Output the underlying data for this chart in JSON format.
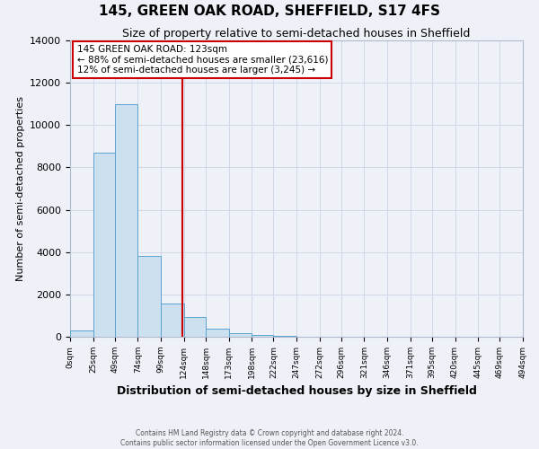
{
  "title": "145, GREEN OAK ROAD, SHEFFIELD, S17 4FS",
  "subtitle": "Size of property relative to semi-detached houses in Sheffield",
  "xlabel": "Distribution of semi-detached houses by size in Sheffield",
  "ylabel": "Number of semi-detached properties",
  "bin_labels": [
    "0sqm",
    "25sqm",
    "49sqm",
    "74sqm",
    "99sqm",
    "124sqm",
    "148sqm",
    "173sqm",
    "198sqm",
    "222sqm",
    "247sqm",
    "272sqm",
    "296sqm",
    "321sqm",
    "346sqm",
    "371sqm",
    "395sqm",
    "420sqm",
    "445sqm",
    "469sqm",
    "494sqm"
  ],
  "bin_edges": [
    0,
    25,
    49,
    74,
    99,
    124,
    148,
    173,
    198,
    222,
    247,
    272,
    296,
    321,
    346,
    371,
    395,
    420,
    445,
    469,
    494
  ],
  "bar_heights": [
    300,
    8700,
    11000,
    3800,
    1550,
    950,
    400,
    150,
    80,
    60,
    0,
    0,
    0,
    0,
    0,
    0,
    0,
    0,
    0,
    0
  ],
  "bar_color": "#cce0f0",
  "bar_edge_color": "#5ba3d0",
  "property_line_x": 123,
  "annotation_title": "145 GREEN OAK ROAD: 123sqm",
  "annotation_line1": "← 88% of semi-detached houses are smaller (23,616)",
  "annotation_line2": "12% of semi-detached houses are larger (3,245) →",
  "annotation_box_color": "#ffffff",
  "annotation_box_edge_color": "#cc0000",
  "vline_color": "#cc0000",
  "ylim": [
    0,
    14000
  ],
  "yticks": [
    0,
    2000,
    4000,
    6000,
    8000,
    10000,
    12000,
    14000
  ],
  "grid_color": "#d0d8e8",
  "background_color": "#eef2f8",
  "footer_line1": "Contains HM Land Registry data © Crown copyright and database right 2024.",
  "footer_line2": "Contains public sector information licensed under the Open Government Licence v3.0."
}
